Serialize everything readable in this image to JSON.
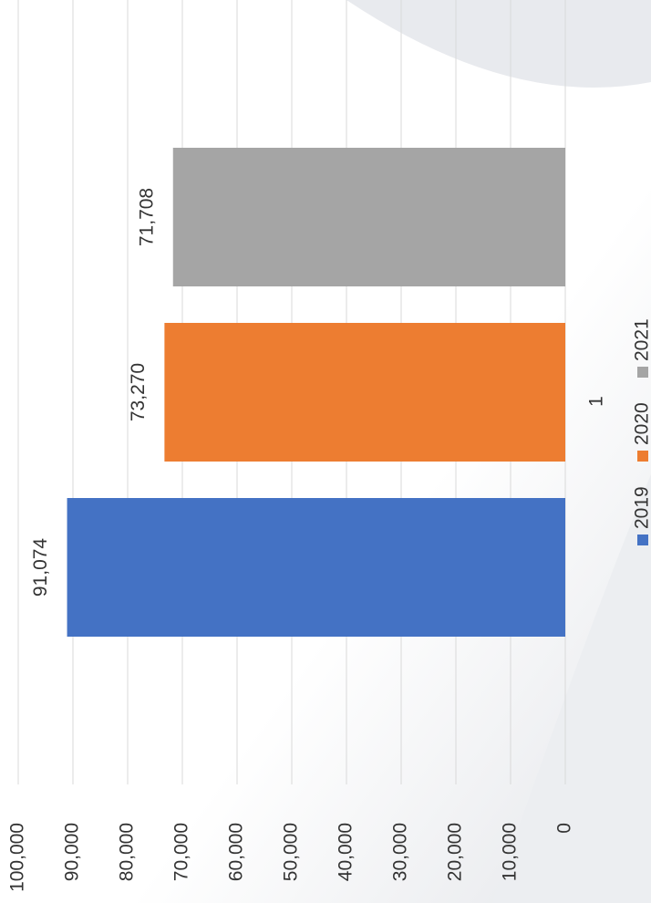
{
  "chart_data": {
    "type": "bar",
    "categories": [
      "1"
    ],
    "series": [
      {
        "name": "2019",
        "color": "#4472c4",
        "values": [
          91074
        ],
        "value_labels": [
          "91,074"
        ]
      },
      {
        "name": "2020",
        "color": "#ed7d31",
        "values": [
          73270
        ],
        "value_labels": [
          "73,270"
        ]
      },
      {
        "name": "2021",
        "color": "#a5a5a5",
        "values": [
          71708
        ],
        "value_labels": [
          "71,708"
        ]
      }
    ],
    "ylim": [
      0,
      100000
    ],
    "yticks": [
      0,
      {
        "value": 10000,
        "label": "10,000"
      },
      {
        "value": 20000,
        "label": "20,000"
      },
      {
        "value": 30000,
        "label": "30,000"
      },
      {
        "value": 40000,
        "label": "40,000"
      },
      {
        "value": 50000,
        "label": "50,000"
      },
      {
        "value": 60000,
        "label": "60,000"
      },
      {
        "value": 70000,
        "label": "70,000"
      },
      {
        "value": 80000,
        "label": "80,000"
      },
      {
        "value": 90000,
        "label": "90,000"
      },
      {
        "value": 100000,
        "label": "100,000"
      }
    ],
    "grid": true,
    "legend": "bottom"
  }
}
